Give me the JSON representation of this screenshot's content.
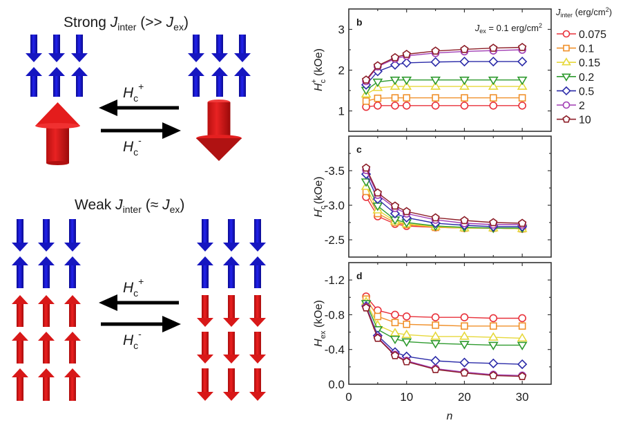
{
  "schematic": {
    "strong": {
      "title_prefix": "Strong ",
      "title_J": "J",
      "title_sub": "inter",
      "title_mid": " (>> ",
      "title_J2": "J",
      "title_sub2": "ex",
      "title_suffix": ")"
    },
    "weak": {
      "title_prefix": "Weak ",
      "title_J": "J",
      "title_sub": "inter",
      "title_mid": " (≈ ",
      "title_J2": "J",
      "title_sub2": "ex",
      "title_suffix": ")"
    },
    "arrow_labels": {
      "plus_H": "H",
      "plus_sub": "c",
      "plus_sup": "+",
      "minus_H": "H",
      "minus_sub": "c",
      "minus_sup": "-"
    },
    "colors": {
      "blue": "#1414c8",
      "red": "#e01818",
      "black": "#000000"
    }
  },
  "chart_data": [
    {
      "id": "b",
      "type": "line",
      "panel_label": "b",
      "annotation": "J_ex = 0.1 erg/cm^2",
      "annotation_parts": {
        "J": "J",
        "sub": "ex",
        "text": " = 0.1 erg/cm",
        "sup": "2"
      },
      "ylabel": "Hc+ (kOe)",
      "ylabel_parts": {
        "H": "H",
        "sub": "c",
        "sup": "+",
        "unit": " (kOe)"
      },
      "xlabel": "",
      "xlim": [
        0,
        35
      ],
      "ylim": [
        0.5,
        3.5
      ],
      "yticks": [
        1,
        2,
        3
      ],
      "ytick_labels": [
        "1",
        "2",
        "3"
      ],
      "x": [
        3,
        5,
        8,
        10,
        15,
        20,
        25,
        30
      ],
      "series": [
        {
          "name": "0.075",
          "values": [
            1.1,
            1.13,
            1.13,
            1.13,
            1.13,
            1.13,
            1.13,
            1.13
          ]
        },
        {
          "name": "0.1",
          "values": [
            1.24,
            1.31,
            1.32,
            1.32,
            1.32,
            1.32,
            1.32,
            1.32
          ]
        },
        {
          "name": "0.15",
          "values": [
            1.41,
            1.57,
            1.6,
            1.6,
            1.6,
            1.6,
            1.6,
            1.6
          ]
        },
        {
          "name": "0.2",
          "values": [
            1.51,
            1.71,
            1.76,
            1.76,
            1.76,
            1.76,
            1.76,
            1.76
          ]
        },
        {
          "name": "0.5",
          "values": [
            1.64,
            1.97,
            2.13,
            2.18,
            2.2,
            2.21,
            2.21,
            2.21
          ]
        },
        {
          "name": "2",
          "values": [
            1.73,
            2.09,
            2.28,
            2.35,
            2.42,
            2.46,
            2.48,
            2.5
          ]
        },
        {
          "name": "10",
          "values": [
            1.76,
            2.11,
            2.31,
            2.39,
            2.47,
            2.51,
            2.54,
            2.56
          ]
        }
      ]
    },
    {
      "id": "c",
      "type": "line",
      "panel_label": "c",
      "ylabel": "Hc- (kOe)",
      "ylabel_parts": {
        "H": "H",
        "sub": "c",
        "sup": "-",
        "unit": " (kOe)"
      },
      "xlabel": "",
      "xlim": [
        0,
        35
      ],
      "ylim": [
        -4.0,
        -2.25
      ],
      "y_inverted": true,
      "yticks": [
        -3.5,
        -3.0,
        -2.5
      ],
      "ytick_labels": [
        "-3.5",
        "-3.0",
        "-2.5"
      ],
      "x": [
        3,
        5,
        8,
        10,
        15,
        20,
        25,
        30
      ],
      "series": [
        {
          "name": "0.075",
          "values": [
            -3.12,
            -2.84,
            -2.73,
            -2.7,
            -2.68,
            -2.67,
            -2.67,
            -2.66
          ]
        },
        {
          "name": "0.1",
          "values": [
            -3.2,
            -2.88,
            -2.75,
            -2.72,
            -2.68,
            -2.67,
            -2.67,
            -2.66
          ]
        },
        {
          "name": "0.15",
          "values": [
            -3.27,
            -2.93,
            -2.77,
            -2.73,
            -2.69,
            -2.67,
            -2.67,
            -2.66
          ]
        },
        {
          "name": "0.2",
          "values": [
            -3.34,
            -2.99,
            -2.79,
            -2.75,
            -2.7,
            -2.68,
            -2.67,
            -2.67
          ]
        },
        {
          "name": "0.5",
          "values": [
            -3.45,
            -3.09,
            -2.88,
            -2.82,
            -2.74,
            -2.71,
            -2.69,
            -2.69
          ]
        },
        {
          "name": "2",
          "values": [
            -3.51,
            -3.15,
            -2.96,
            -2.88,
            -2.79,
            -2.74,
            -2.72,
            -2.72
          ]
        },
        {
          "name": "10",
          "values": [
            -3.54,
            -3.18,
            -2.99,
            -2.91,
            -2.82,
            -2.78,
            -2.75,
            -2.74
          ]
        }
      ]
    },
    {
      "id": "d",
      "type": "line",
      "panel_label": "d",
      "ylabel": "Hex (kOe)",
      "ylabel_parts": {
        "H": "H",
        "sub": "ex",
        "sup": "",
        "unit": " (kOe)"
      },
      "xlabel": "n",
      "xlim": [
        0,
        35
      ],
      "ylim": [
        -1.4,
        0.0
      ],
      "y_inverted": true,
      "xticks": [
        0,
        10,
        20,
        30
      ],
      "xtick_labels": [
        "0",
        "10",
        "20",
        "30"
      ],
      "yticks": [
        -1.2,
        -0.8,
        -0.4,
        0.0
      ],
      "ytick_labels": [
        "-1.2",
        "-0.8",
        "-0.4",
        "0.0"
      ],
      "x": [
        3,
        5,
        8,
        10,
        15,
        20,
        25,
        30
      ],
      "series": [
        {
          "name": "0.075",
          "values": [
            -1.01,
            -0.85,
            -0.8,
            -0.78,
            -0.77,
            -0.77,
            -0.76,
            -0.76
          ]
        },
        {
          "name": "0.1",
          "values": [
            -0.98,
            -0.78,
            -0.71,
            -0.69,
            -0.68,
            -0.67,
            -0.67,
            -0.67
          ]
        },
        {
          "name": "0.15",
          "values": [
            -0.95,
            -0.68,
            -0.59,
            -0.57,
            -0.55,
            -0.55,
            -0.54,
            -0.53
          ]
        },
        {
          "name": "0.2",
          "values": [
            -0.93,
            -0.63,
            -0.52,
            -0.49,
            -0.47,
            -0.46,
            -0.45,
            -0.45
          ]
        },
        {
          "name": "0.5",
          "values": [
            -0.9,
            -0.56,
            -0.37,
            -0.32,
            -0.27,
            -0.25,
            -0.24,
            -0.23
          ]
        },
        {
          "name": "2",
          "values": [
            -0.89,
            -0.54,
            -0.34,
            -0.27,
            -0.18,
            -0.14,
            -0.11,
            -0.1
          ]
        },
        {
          "name": "10",
          "values": [
            -0.88,
            -0.53,
            -0.33,
            -0.26,
            -0.17,
            -0.13,
            -0.1,
            -0.09
          ]
        }
      ]
    }
  ],
  "legend": {
    "title_J": "J",
    "title_sub": "inter",
    "title_unit": " (erg/cm",
    "title_sup": "2",
    "title_close": ")",
    "placement": "right",
    "entries": [
      {
        "label": "0.075",
        "color": "#e8313a",
        "marker": "circle"
      },
      {
        "label": "0.1",
        "color": "#f0902a",
        "marker": "square"
      },
      {
        "label": "0.15",
        "color": "#e6d83a",
        "marker": "triangle-up"
      },
      {
        "label": "0.2",
        "color": "#2e9a2e",
        "marker": "triangle-down"
      },
      {
        "label": "0.5",
        "color": "#2a2aa8",
        "marker": "diamond"
      },
      {
        "label": "2",
        "color": "#a03cb4",
        "marker": "circle"
      },
      {
        "label": "10",
        "color": "#8c1c26",
        "marker": "pentagon"
      }
    ]
  }
}
